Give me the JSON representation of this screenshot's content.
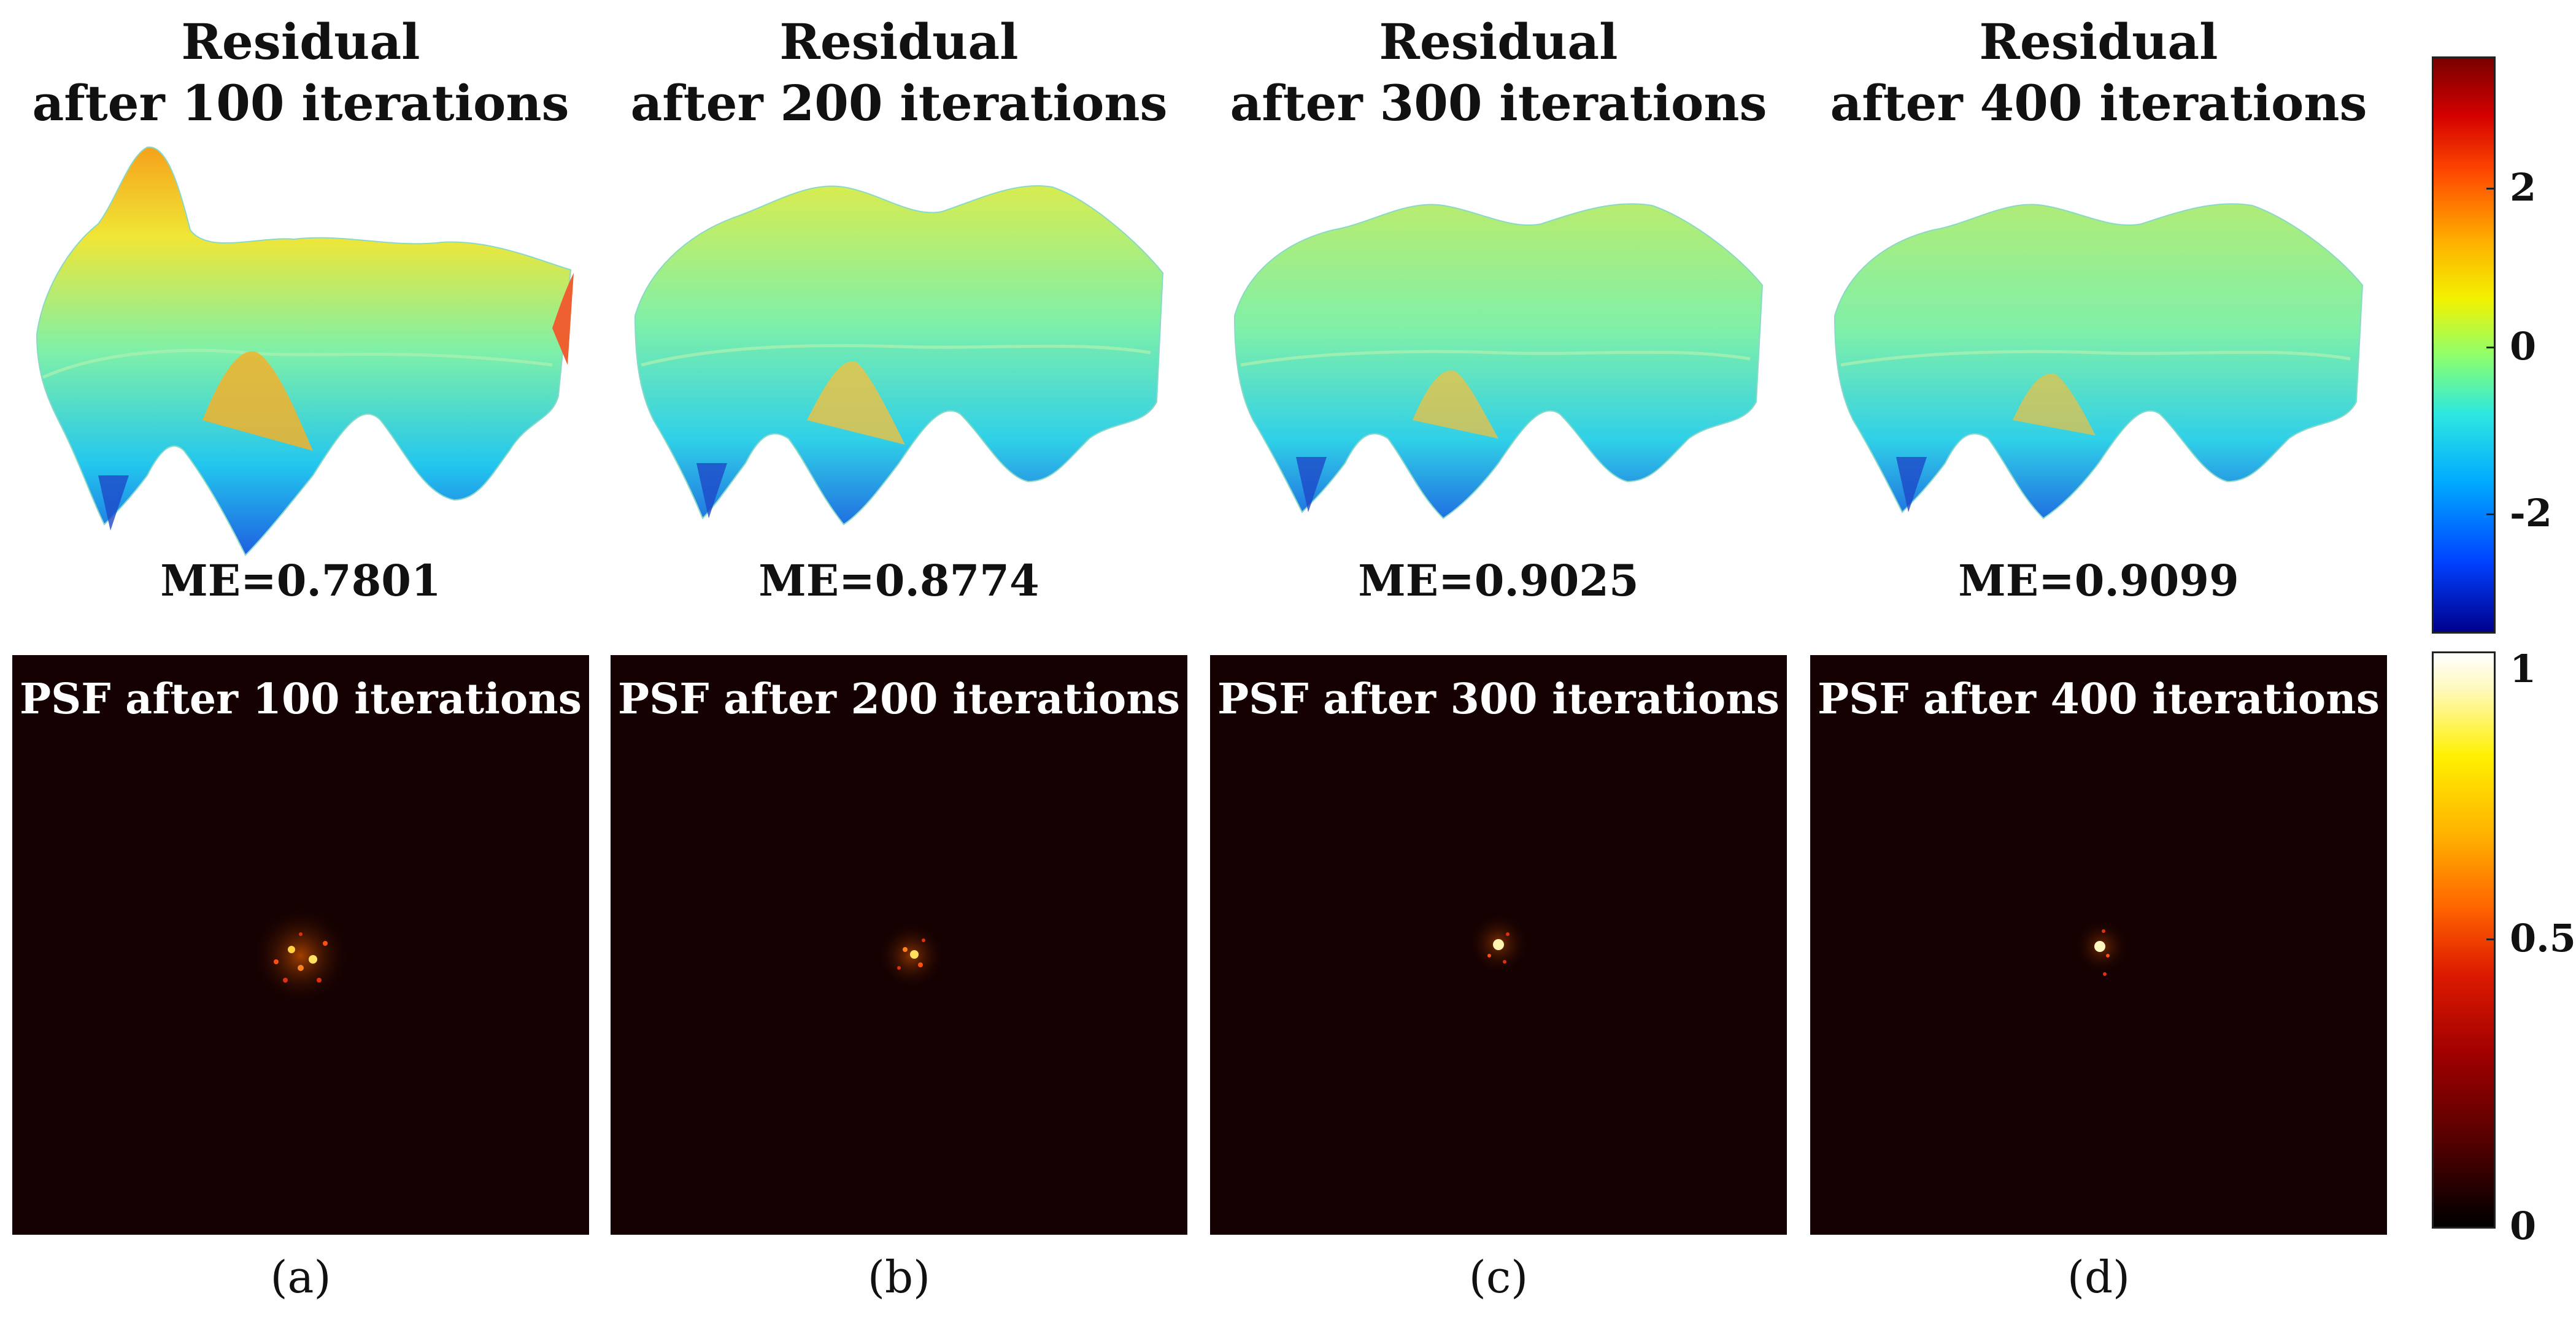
{
  "panels": [
    {
      "residual_title_1": "Residual",
      "residual_title_2": "after 100 iterations",
      "me": "ME=0.7801",
      "psf_title": "PSF after 100 iterations",
      "label": "(a)"
    },
    {
      "residual_title_1": "Residual",
      "residual_title_2": "after 200 iterations",
      "me": "ME=0.8774",
      "psf_title": "PSF after 200 iterations",
      "label": "(b)"
    },
    {
      "residual_title_1": "Residual",
      "residual_title_2": "after 300 iterations",
      "me": "ME=0.9025",
      "psf_title": "PSF after 300 iterations",
      "label": "(c)"
    },
    {
      "residual_title_1": "Residual",
      "residual_title_2": "after 400 iterations",
      "me": "ME=0.9099",
      "psf_title": "PSF after 400 iterations",
      "label": "(d)"
    }
  ],
  "colorbar_top": {
    "ticks": [
      "2",
      "0",
      "-2"
    ],
    "colormap": "jet"
  },
  "colorbar_bottom": {
    "ticks": [
      "1",
      "0.5",
      "0"
    ],
    "colormap": "hot"
  },
  "colors": {
    "psf_background": "#150102"
  }
}
